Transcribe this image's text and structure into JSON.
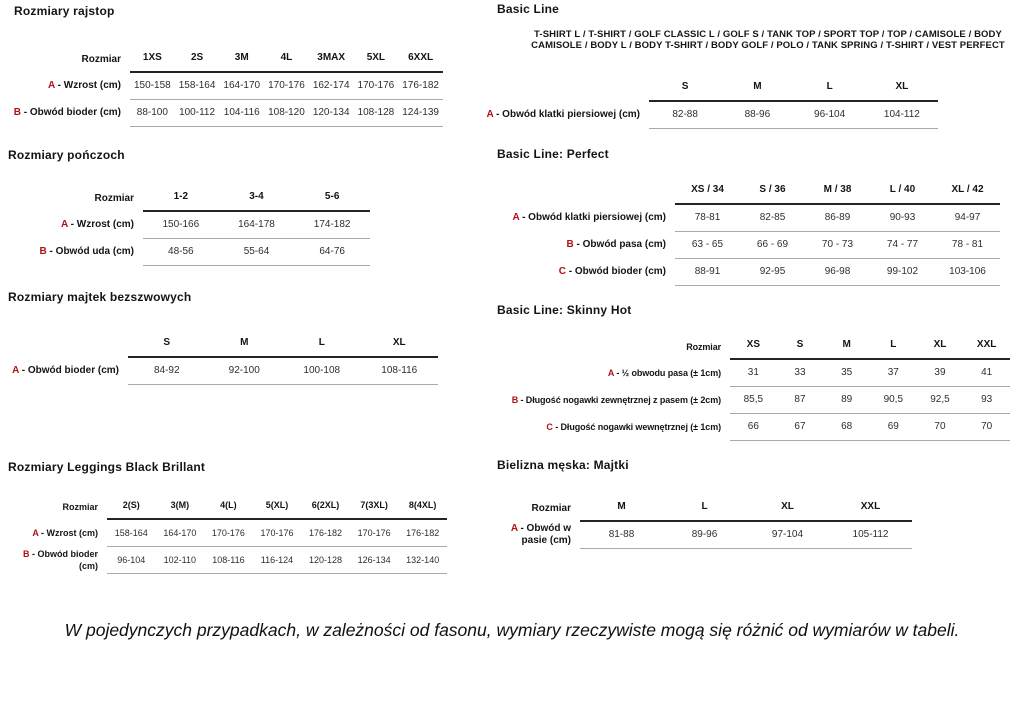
{
  "colors": {
    "accent_red": "#b01117",
    "rule_dark": "#242424",
    "rule_light": "#a9a9a9"
  },
  "page": {
    "footnote": "W pojedynczych przypadkach, w zależności od fasonu, wymiary rzeczywiste mogą się różnić od wymiarów w tabeli."
  },
  "tables": [
    {
      "title": "Rozmiary rajstop",
      "corner": "Rozmiar",
      "columns": [
        "1XS",
        "2S",
        "3M",
        "4L",
        "3MAX",
        "5XL",
        "6XXL"
      ],
      "rows": [
        {
          "letter": "A",
          "label": "Wzrost (cm)",
          "values": [
            "150-158",
            "158-164",
            "164-170",
            "170-176",
            "162-174",
            "170-176",
            "176-182"
          ]
        },
        {
          "letter": "B",
          "label": "Obwód bioder (cm)",
          "values": [
            "88-100",
            "100-112",
            "104-116",
            "108-120",
            "120-134",
            "108-128",
            "124-139"
          ]
        }
      ]
    },
    {
      "title": "Rozmiary pończoch",
      "corner": "Rozmiar",
      "columns": [
        "1-2",
        "3-4",
        "5-6"
      ],
      "rows": [
        {
          "letter": "A",
          "label": "Wzrost (cm)",
          "values": [
            "150-166",
            "164-178",
            "174-182"
          ]
        },
        {
          "letter": "B",
          "label": "Obwód uda (cm)",
          "values": [
            "48-56",
            "55-64",
            "64-76"
          ]
        }
      ]
    },
    {
      "title": "Rozmiary majtek bezszwowych",
      "corner": "",
      "columns": [
        "S",
        "M",
        "L",
        "XL"
      ],
      "rows": [
        {
          "letter": "A",
          "label": "Obwód bioder (cm)",
          "values": [
            "84-92",
            "92-100",
            "100-108",
            "108-116"
          ]
        }
      ]
    },
    {
      "title": "Rozmiary Leggings Black Brillant",
      "corner": "Rozmiar",
      "columns": [
        "2(S)",
        "3(M)",
        "4(L)",
        "5(XL)",
        "6(2XL)",
        "7(3XL)",
        "8(4XL)"
      ],
      "rows": [
        {
          "letter": "A",
          "label": "Wzrost (cm)",
          "values": [
            "158-164",
            "164-170",
            "170-176",
            "170-176",
            "176-182",
            "170-176",
            "176-182"
          ]
        },
        {
          "letter": "B",
          "label": "Obwód bioder (cm)",
          "values": [
            "96-104",
            "102-110",
            "108-116",
            "116-124",
            "120-128",
            "126-134",
            "132-140"
          ]
        }
      ]
    },
    {
      "title": "Basic Line",
      "subtitle": "T-SHIRT L / T-SHIRT / GOLF CLASSIC L / GOLF S / TANK TOP / SPORT TOP / TOP / CAMISOLE / BODY CAMISOLE / BODY L / BODY T-SHIRT / BODY GOLF / POLO / TANK SPRING / T-SHIRT / VEST PERFECT",
      "corner": "",
      "columns": [
        "S",
        "M",
        "L",
        "XL"
      ],
      "rows": [
        {
          "letter": "A",
          "label": "Obwód klatki piersiowej (cm)",
          "values": [
            "82-88",
            "88-96",
            "96-104",
            "104-112"
          ]
        }
      ]
    },
    {
      "title": "Basic Line: Perfect",
      "corner": "",
      "columns": [
        "XS / 34",
        "S / 36",
        "M / 38",
        "L / 40",
        "XL / 42"
      ],
      "rows": [
        {
          "letter": "A",
          "label": "Obwód klatki piersiowej (cm)",
          "values": [
            "78-81",
            "82-85",
            "86-89",
            "90-93",
            "94-97"
          ]
        },
        {
          "letter": "B",
          "label": "Obwód pasa (cm)",
          "values": [
            "63 - 65",
            "66 - 69",
            "70 - 73",
            "74 - 77",
            "78 - 81"
          ]
        },
        {
          "letter": "C",
          "label": "Obwód bioder (cm)",
          "values": [
            "88-91",
            "92-95",
            "96-98",
            "99-102",
            "103-106"
          ]
        }
      ]
    },
    {
      "title": "Basic Line: Skinny Hot",
      "corner": "Rozmiar",
      "columns": [
        "XS",
        "S",
        "M",
        "L",
        "XL",
        "XXL"
      ],
      "rows": [
        {
          "letter": "A",
          "label": "½ obwodu pasa (± 1cm)",
          "values": [
            "31",
            "33",
            "35",
            "37",
            "39",
            "41"
          ]
        },
        {
          "letter": "B",
          "label": "Długość nogawki zewnętrznej z pasem (± 2cm)",
          "values": [
            "85,5",
            "87",
            "89",
            "90,5",
            "92,5",
            "93"
          ]
        },
        {
          "letter": "C",
          "label": "Długość nogawki wewnętrznej (± 1cm)",
          "values": [
            "66",
            "67",
            "68",
            "69",
            "70",
            "70"
          ]
        }
      ]
    },
    {
      "title": "Bielizna męska: Majtki",
      "corner": "Rozmiar",
      "columns": [
        "M",
        "L",
        "XL",
        "XXL"
      ],
      "rows": [
        {
          "letter": "A",
          "label": "Obwód w pasie (cm)",
          "values": [
            "81-88",
            "89-96",
            "97-104",
            "105-112"
          ]
        }
      ]
    }
  ]
}
